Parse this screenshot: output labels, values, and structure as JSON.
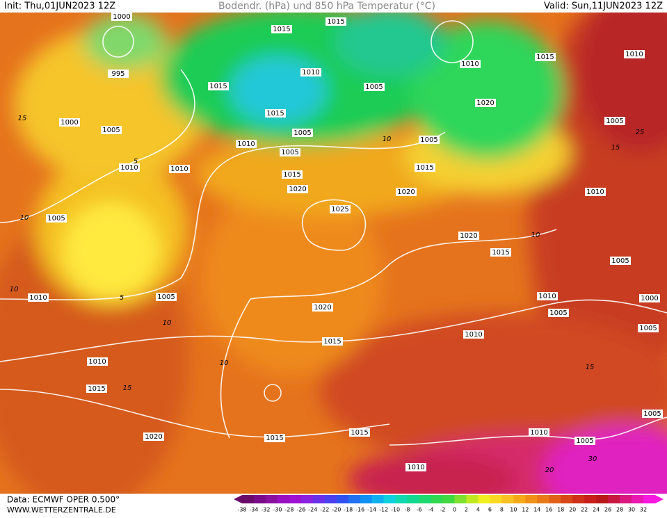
{
  "header": {
    "init": "Init: Thu,01JUN2023 12Z",
    "title": "Bodendr. (hPa) und 850 hPa Temperatur (°C)",
    "valid": "Valid: Sun,11JUN2023 12Z"
  },
  "isobar_labels": [
    "1000",
    "1015",
    "1015",
    "995",
    "1010",
    "1015",
    "1005",
    "1020",
    "1015",
    "1000",
    "1005",
    "1005",
    "1010",
    "1005",
    "1010",
    "1010",
    "1005",
    "1015",
    "1015",
    "1020",
    "1020",
    "1025",
    "1005",
    "1020",
    "1015",
    "1010",
    "1005",
    "1020",
    "1010",
    "1005",
    "1015",
    "1010",
    "1010",
    "1015",
    "1020",
    "1015",
    "1015",
    "1010",
    "1005",
    "1010",
    "1015",
    "1010",
    "1005",
    "1010",
    "1005",
    "1000",
    "1005",
    "1005",
    "1010"
  ],
  "temperature_labels": [
    "15",
    "10",
    "10",
    "5",
    "10",
    "10",
    "15",
    "15",
    "10",
    "15",
    "25",
    "30",
    "20",
    "10",
    "5"
  ],
  "footer": {
    "source": "Data: ECMWF OPER 0.500°",
    "site": "WWW.WETTERZENTRALE.DE"
  },
  "color_scale": {
    "ticks": [
      -38,
      -34,
      -32,
      -30,
      -28,
      -26,
      -24,
      -22,
      -20,
      -18,
      -16,
      -14,
      -12,
      -10,
      -8,
      -6,
      -4,
      -2,
      0,
      2,
      4,
      6,
      8,
      10,
      12,
      14,
      16,
      18,
      20,
      22,
      24,
      26,
      28,
      30,
      32
    ]
  }
}
